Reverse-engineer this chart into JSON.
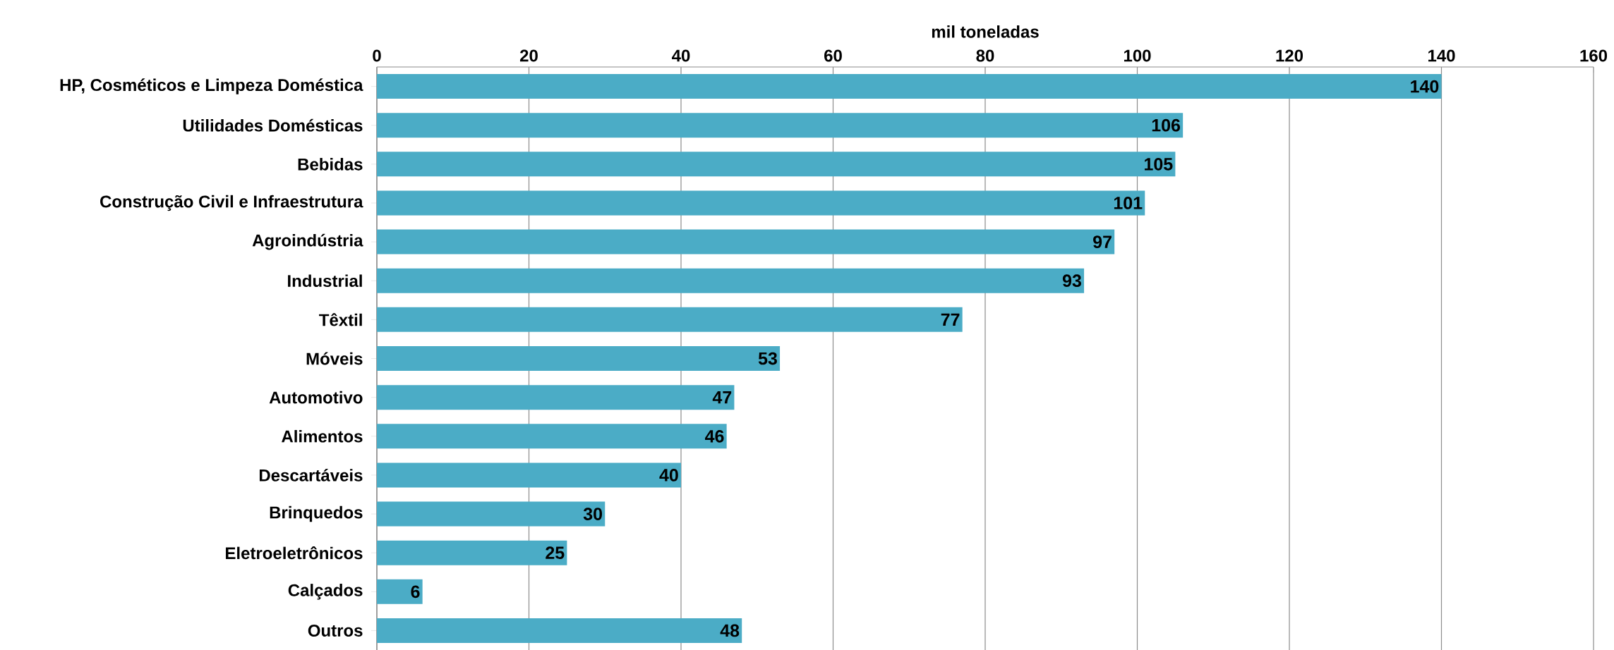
{
  "chart_data": {
    "type": "bar",
    "orientation": "horizontal",
    "xlabel": "mil toneladas",
    "categories": [
      "HP, Cosméticos e Limpeza Doméstica",
      "Utilidades Domésticas",
      "Bebidas",
      "Construção Civil e Infraestrutura",
      "Agroindústria",
      "Industrial",
      "Têxtil",
      "Móveis",
      "Automotivo",
      "Alimentos",
      "Descartáveis",
      "Brinquedos",
      "Eletroeletrônicos",
      "Calçados",
      "Outros"
    ],
    "values": [
      140,
      106,
      105,
      101,
      97,
      93,
      77,
      53,
      47,
      46,
      40,
      30,
      25,
      6,
      48
    ],
    "color": "#4bacc6",
    "xlim": [
      0,
      160
    ],
    "xticks": [
      0,
      20,
      40,
      60,
      80,
      100,
      120,
      140,
      160
    ],
    "grid": "x",
    "data_labels": true
  }
}
